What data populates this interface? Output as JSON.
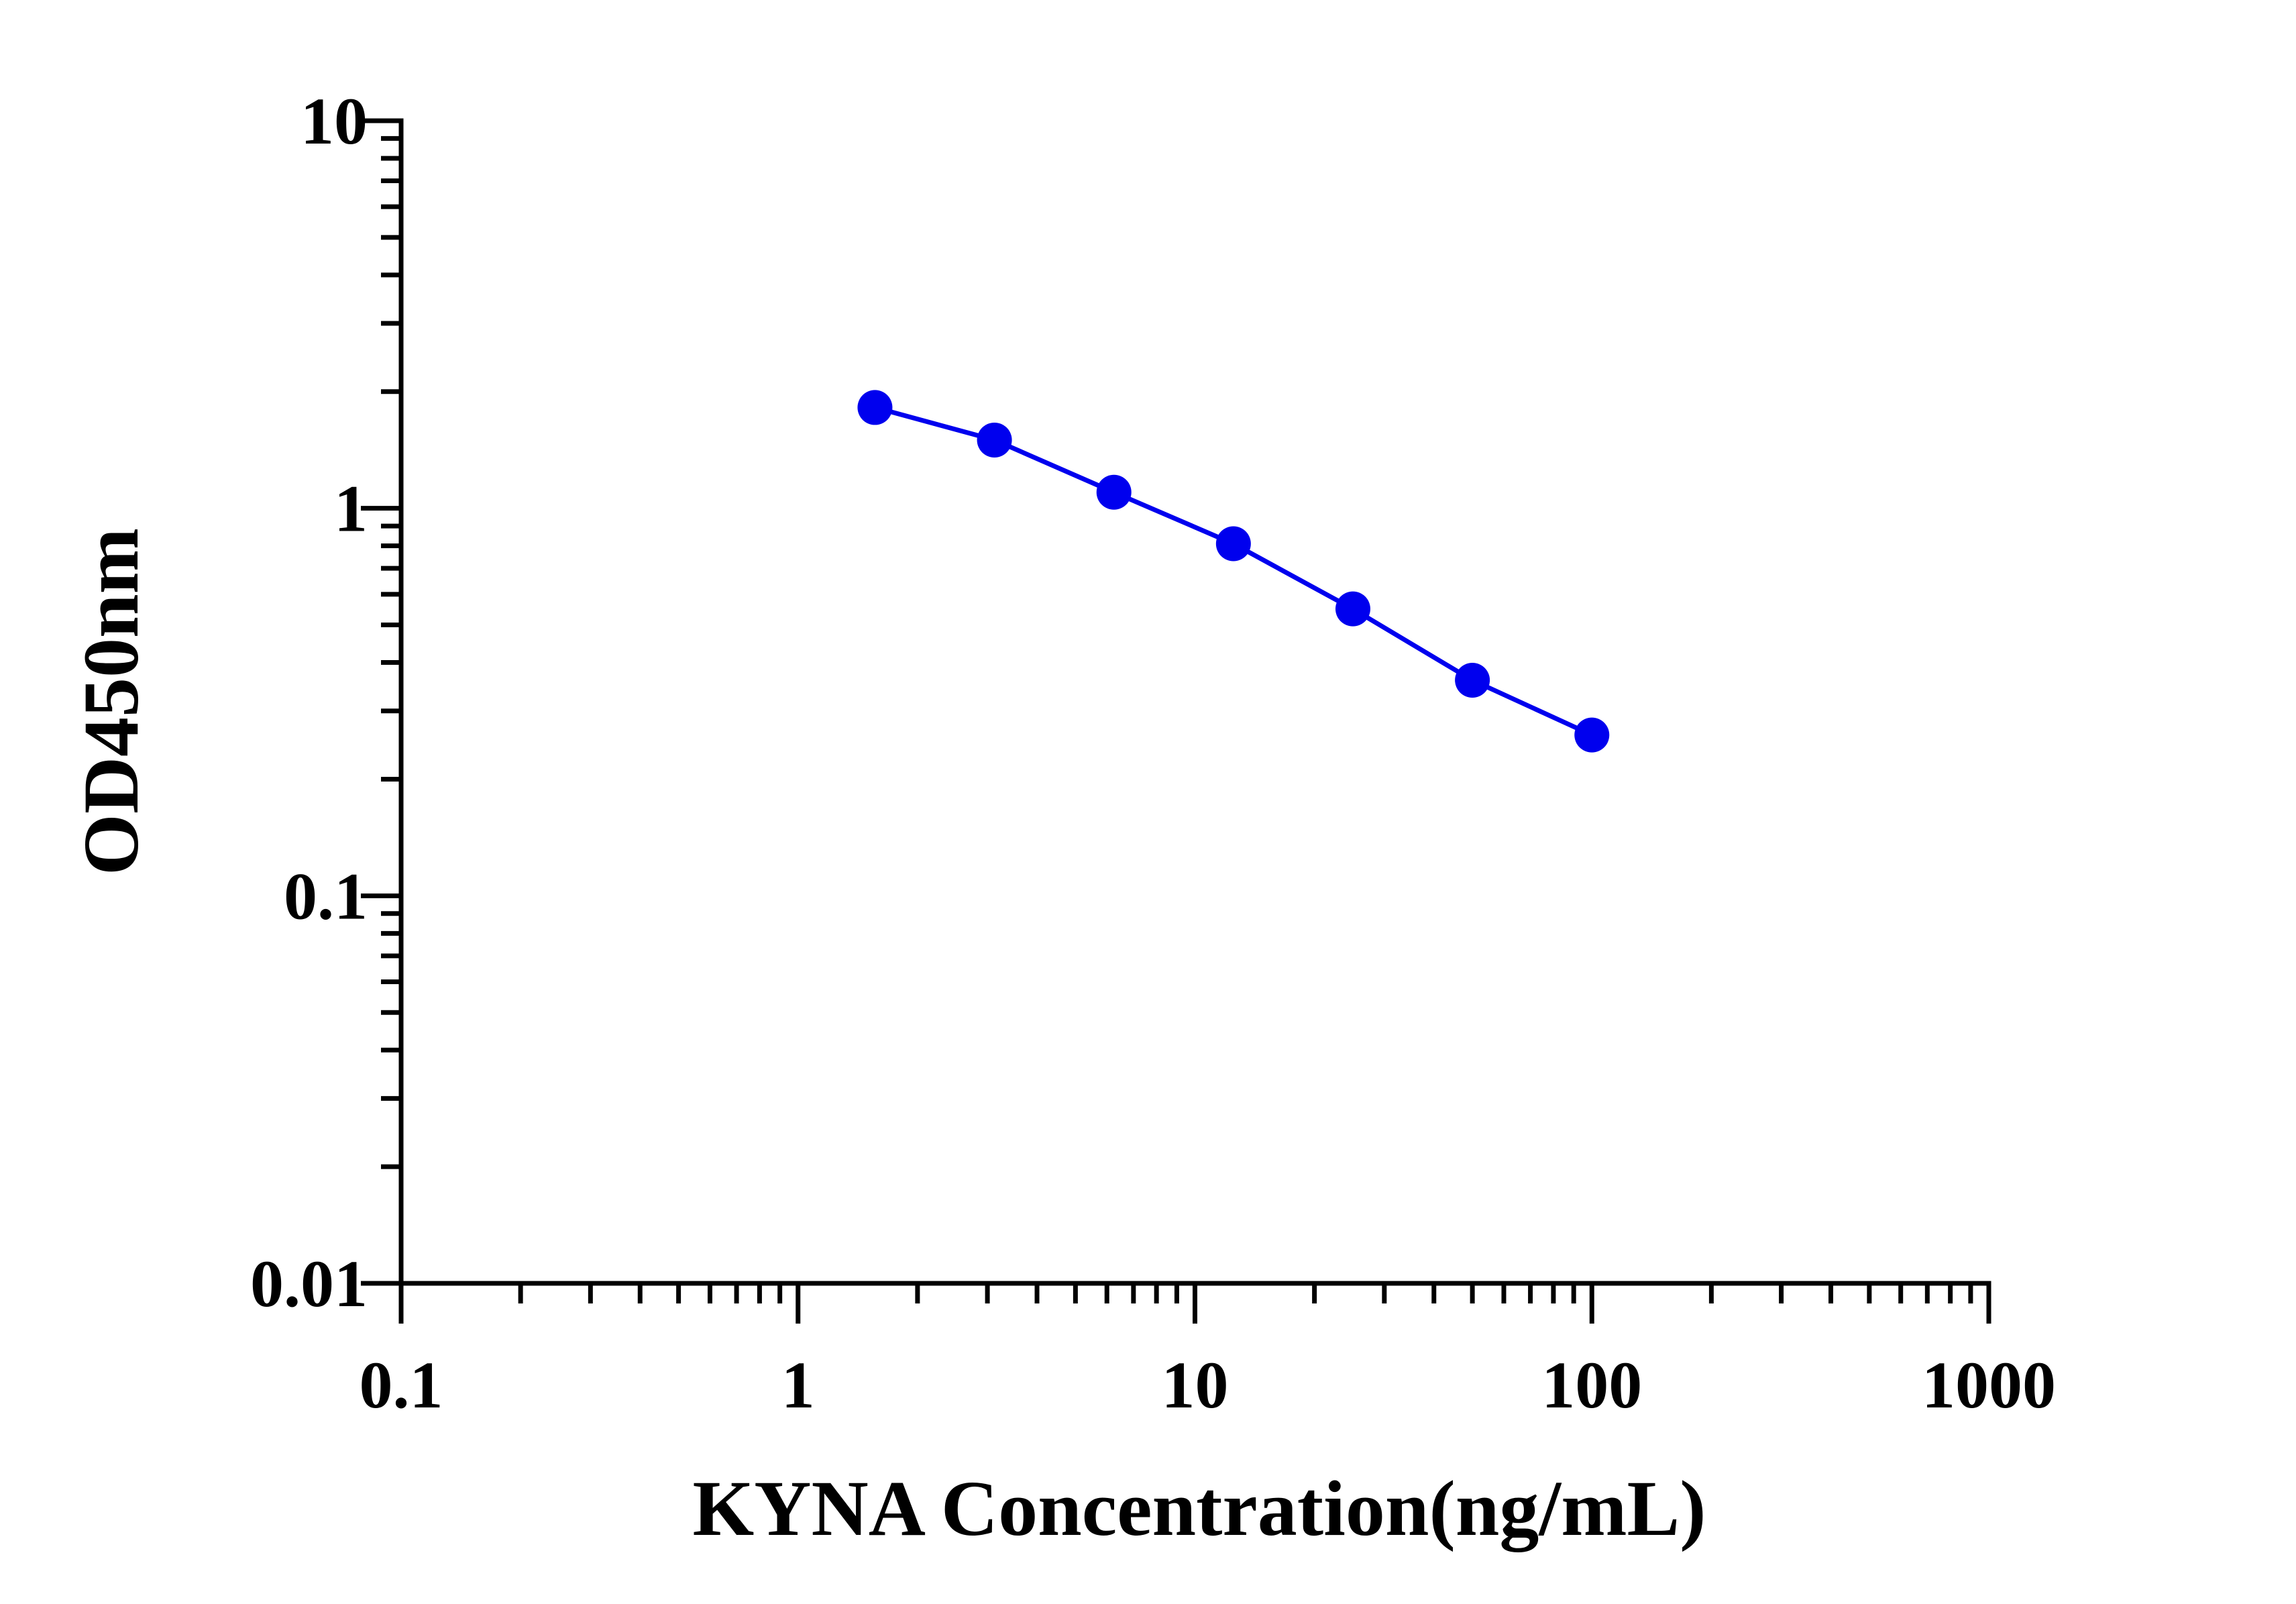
{
  "chart_data": {
    "type": "line",
    "title": "",
    "xlabel": "KYNA Concentration(ng/mL)",
    "ylabel": "OD450nm",
    "x_scale": "log",
    "y_scale": "log",
    "xlim": [
      0.1,
      1000
    ],
    "ylim": [
      0.01,
      10
    ],
    "x_ticks": [
      0.1,
      1,
      10,
      100,
      1000
    ],
    "x_tick_labels": [
      "0.1",
      "1",
      "10",
      "100",
      "1000"
    ],
    "y_ticks": [
      0.01,
      0.1,
      1,
      10
    ],
    "y_tick_labels": [
      "0.01",
      "0.1",
      "1",
      "10"
    ],
    "grid": false,
    "legend": "none",
    "series": [
      {
        "color": "#0000ee",
        "marker": "circle",
        "x": [
          1.5625,
          3.125,
          6.25,
          12.5,
          25,
          50,
          100
        ],
        "y": [
          1.82,
          1.5,
          1.1,
          0.81,
          0.55,
          0.36,
          0.26
        ]
      }
    ]
  }
}
